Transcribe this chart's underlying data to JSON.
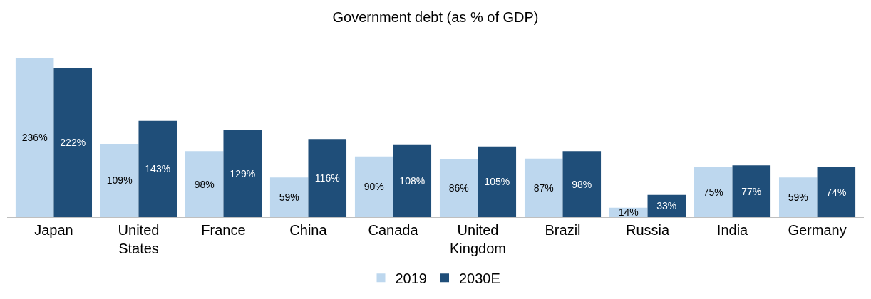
{
  "chart_data": {
    "type": "bar",
    "title": "Government debt (as % of GDP)",
    "categories": [
      "Japan",
      "United States",
      "France",
      "China",
      "Canada",
      "United Kingdom",
      "Brazil",
      "Russia",
      "India",
      "Germany"
    ],
    "series": [
      {
        "name": "2019",
        "color": "#bdd7ee",
        "values": [
          236,
          109,
          98,
          59,
          90,
          86,
          87,
          14,
          75,
          59
        ],
        "value_labels": [
          "236%",
          "109%",
          "98%",
          "59%",
          "90%",
          "86%",
          "87%",
          "14%",
          "75%",
          "59%"
        ]
      },
      {
        "name": "2030E",
        "color": "#1f4e79",
        "values": [
          222,
          143,
          129,
          116,
          108,
          105,
          98,
          33,
          77,
          74
        ],
        "value_labels": [
          "222%",
          "143%",
          "129%",
          "116%",
          "108%",
          "105%",
          "98%",
          "33%",
          "77%",
          "74%"
        ]
      }
    ],
    "legend": "bottom",
    "grid": false
  }
}
